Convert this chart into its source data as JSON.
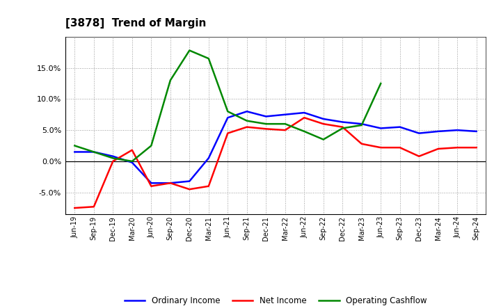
{
  "title": "[3878]  Trend of Margin",
  "x_labels": [
    "Jun-19",
    "Sep-19",
    "Dec-19",
    "Mar-20",
    "Jun-20",
    "Sep-20",
    "Dec-20",
    "Mar-21",
    "Jun-21",
    "Sep-21",
    "Dec-21",
    "Mar-22",
    "Jun-22",
    "Sep-22",
    "Dec-22",
    "Mar-23",
    "Jun-23",
    "Sep-23",
    "Dec-23",
    "Mar-24",
    "Jun-24",
    "Sep-24"
  ],
  "ordinary_income": [
    1.5,
    1.5,
    0.8,
    -0.2,
    -3.5,
    -3.5,
    -3.2,
    0.5,
    7.0,
    8.0,
    7.2,
    7.5,
    7.8,
    6.8,
    6.3,
    6.0,
    5.3,
    5.5,
    4.5,
    4.8,
    5.0,
    4.8
  ],
  "net_income": [
    -7.5,
    -7.3,
    0.0,
    1.8,
    -4.0,
    -3.5,
    -4.5,
    -4.0,
    4.5,
    5.5,
    5.2,
    5.0,
    7.0,
    6.0,
    5.5,
    2.8,
    2.2,
    2.2,
    0.8,
    2.0,
    2.2,
    2.2
  ],
  "operating_cashflow": [
    2.5,
    1.5,
    0.5,
    0.0,
    2.5,
    13.0,
    17.8,
    16.5,
    8.0,
    6.5,
    6.0,
    6.0,
    4.8,
    3.5,
    5.3,
    5.8,
    12.5,
    null,
    null,
    null,
    null,
    null
  ],
  "line_colors": {
    "ordinary_income": "#0000ff",
    "net_income": "#ff0000",
    "operating_cashflow": "#008800"
  },
  "ylim": [
    -8.5,
    20.0
  ],
  "yticks": [
    -5.0,
    0.0,
    5.0,
    10.0,
    15.0
  ],
  "background_color": "#ffffff",
  "grid_color": "#999999",
  "legend_labels": [
    "Ordinary Income",
    "Net Income",
    "Operating Cashflow"
  ]
}
